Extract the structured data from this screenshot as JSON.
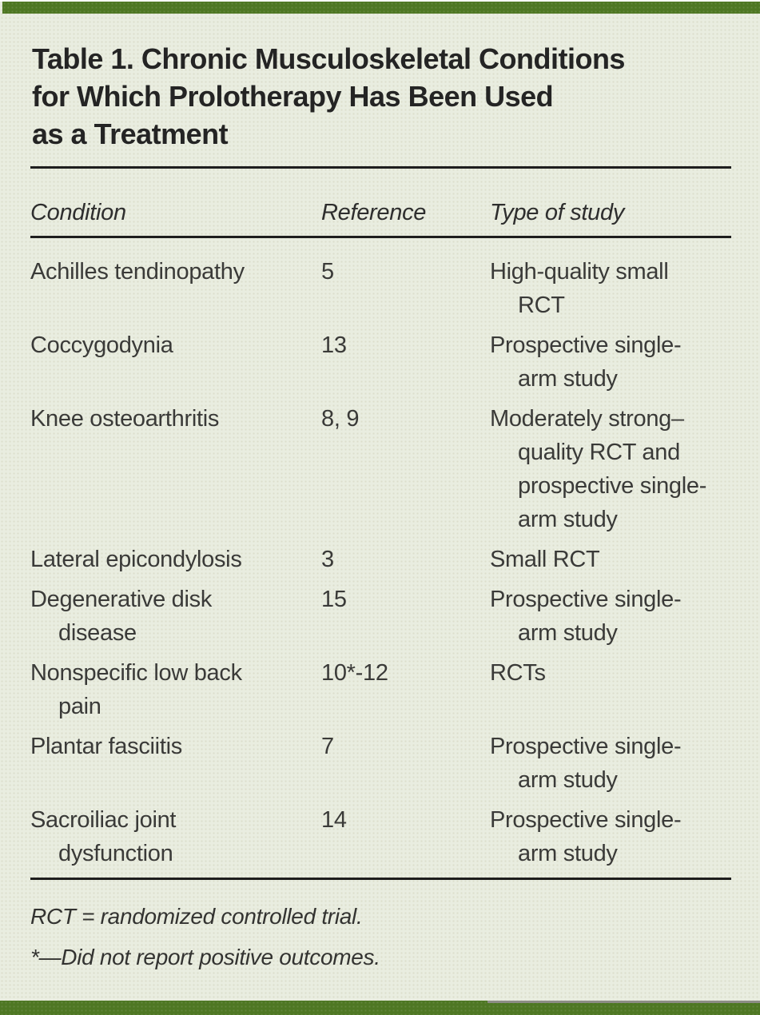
{
  "colors": {
    "panel_background": "#e9ede0",
    "bar_green": "#4e7723",
    "rule_black": "#1e1e1e",
    "body_text": "#3a3a38",
    "gray_stripe": "#8d8d86"
  },
  "table": {
    "title": "Table 1. Chronic Musculoskeletal Conditions\nfor Which Prolotherapy Has Been Used\nas a Treatment",
    "columns": [
      "Condition",
      "Reference",
      "Type of study"
    ],
    "rows": [
      {
        "condition": "Achilles tendinopathy",
        "reference": "5",
        "type": "High-quality small\nRCT"
      },
      {
        "condition": "Coccygodynia",
        "reference": "13",
        "type": "Prospective single-\narm study"
      },
      {
        "condition": "Knee osteoarthritis",
        "reference": "8, 9",
        "type": "Moderately strong–\nquality RCT and\nprospective single-\narm study"
      },
      {
        "condition": "Lateral epicondylosis",
        "reference": "3",
        "type": "Small RCT"
      },
      {
        "condition": "Degenerative disk\ndisease",
        "reference": "15",
        "type": "Prospective single-\narm study"
      },
      {
        "condition": "Nonspecific low back\npain",
        "reference": "10*-12",
        "type": "RCTs"
      },
      {
        "condition": "Plantar fasciitis",
        "reference": "7",
        "type": "Prospective single-\narm study"
      },
      {
        "condition": "Sacroiliac joint\ndysfunction",
        "reference": "14",
        "type": "Prospective single-\narm study"
      }
    ],
    "footnotes": [
      "RCT = randomized controlled trial.",
      "*—Did not report positive outcomes."
    ]
  }
}
